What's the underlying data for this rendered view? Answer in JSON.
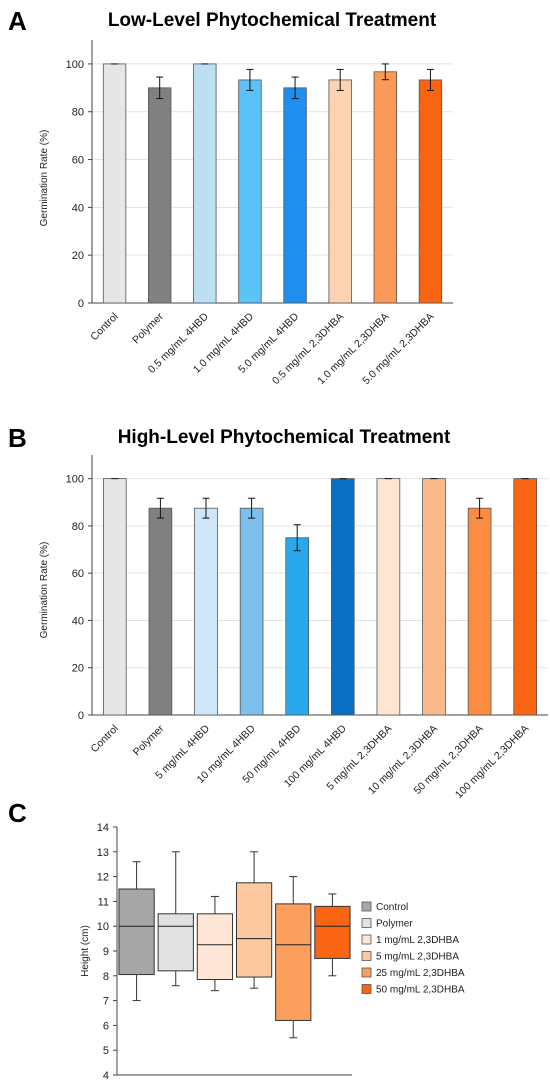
{
  "panels": {
    "A": "A",
    "B": "B",
    "C": "C"
  },
  "chart_data": [
    {
      "type": "bar",
      "title": "Low-Level Phytochemical Treatment",
      "ylabel": "Germination Rate (%)",
      "xlabel": "",
      "ylim": [
        0,
        110
      ],
      "yticks": [
        0,
        20,
        40,
        60,
        80,
        100
      ],
      "grid": true,
      "categories": [
        "Control",
        "Polymer",
        "0.5 mg/mL 4HBD",
        "1.0 mg/mL 4HBD",
        "5.0 mg/mL 4HBD",
        "0.5 mg/mL 2,3DHBA",
        "1.0 mg/mL 2,3DHBA",
        "5.0 mg/mL 2,3DHBA"
      ],
      "values": [
        100,
        90,
        100,
        93.3,
        90,
        93.3,
        96.7,
        93.3
      ],
      "errors": [
        0,
        4.5,
        0,
        4.4,
        4.5,
        4.4,
        3.3,
        4.4
      ],
      "colors": [
        "#e6e6e6",
        "#808080",
        "#bcdff3",
        "#5bc2f5",
        "#1e8ef0",
        "#fdd2b1",
        "#fb9a58",
        "#f96512"
      ]
    },
    {
      "type": "bar",
      "title": "High-Level Phytochemical Treatment",
      "ylabel": "Germination Rate (%)",
      "xlabel": "",
      "ylim": [
        0,
        110
      ],
      "yticks": [
        0,
        20,
        40,
        60,
        80,
        100
      ],
      "grid": true,
      "categories": [
        "Control",
        "Polymer",
        "5 mg/mL 4HBD",
        "10 mg/mL 4HBD",
        "50 mg/mL 4HBD",
        "100 mg/mL 4HBD",
        "5 mg/mL 2,3DHBA",
        "10 mg/mL 2,3DHBA",
        "50 mg/mL 2,3DHBA",
        "100 mg/mL 2,3DHBA"
      ],
      "values": [
        100,
        87.5,
        87.5,
        87.5,
        75,
        100,
        100,
        100,
        87.5,
        100
      ],
      "errors": [
        0,
        4.2,
        4.2,
        4.2,
        5.5,
        0,
        0,
        0,
        4.2,
        0
      ],
      "colors": [
        "#e6e6e6",
        "#808080",
        "#cfe6f9",
        "#7fbfec",
        "#2aa8ee",
        "#0a6fc4",
        "#fde5d4",
        "#fbb88a",
        "#fb8c42",
        "#f96512"
      ]
    },
    {
      "type": "box",
      "title": "",
      "ylabel": "Height (cm)",
      "xlabel": "",
      "ylim": [
        4,
        14
      ],
      "yticks": [
        4,
        5,
        6,
        7,
        8,
        9,
        10,
        11,
        12,
        13,
        14
      ],
      "grid": false,
      "legend_position": "right",
      "series": [
        {
          "name": "Control",
          "min": 7.0,
          "q1": 8.05,
          "median": 10.0,
          "q3": 11.5,
          "max": 12.6,
          "color": "#a6a6a6"
        },
        {
          "name": "Polymer",
          "min": 7.6,
          "q1": 8.2,
          "median": 10.0,
          "q3": 10.5,
          "max": 13.0,
          "color": "#e2e2e2"
        },
        {
          "name": "1 mg/mL 2,3DHBA",
          "min": 7.4,
          "q1": 7.85,
          "median": 9.25,
          "q3": 10.5,
          "max": 11.2,
          "color": "#fde6d6"
        },
        {
          "name": "5 mg/mL 2,3DHBA",
          "min": 7.5,
          "q1": 7.95,
          "median": 9.5,
          "q3": 11.75,
          "max": 13.0,
          "color": "#fdc8a0"
        },
        {
          "name": "25 mg/mL 2,3DHBA",
          "min": 5.5,
          "q1": 6.2,
          "median": 9.25,
          "q3": 10.9,
          "max": 12.0,
          "color": "#fb9e5e"
        },
        {
          "name": "50 mg/mL 2,3DHBA",
          "min": 8.0,
          "q1": 8.7,
          "median": 10.0,
          "q3": 10.8,
          "max": 11.3,
          "color": "#f96512"
        }
      ]
    }
  ]
}
